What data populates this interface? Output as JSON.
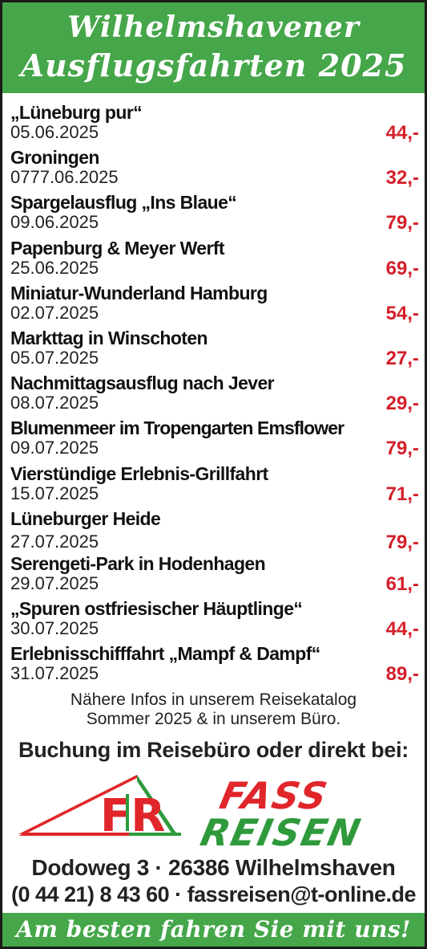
{
  "header": {
    "line1": "Wilhelmshavener",
    "line2": "Ausflugsfahrten 2025"
  },
  "trips": [
    {
      "name": "„Lüneburg pur“",
      "date": "05.06.2025",
      "price": "44,-"
    },
    {
      "name": "Groningen",
      "date": "0777.06.2025",
      "price": "32,-"
    },
    {
      "name": "Spargelausflug „Ins Blaue“",
      "date": "09.06.2025",
      "price": "79,-"
    },
    {
      "name": "Papenburg & Meyer Werft",
      "date": "25.06.2025",
      "price": "69,-"
    },
    {
      "name": "Miniatur-Wunderland Hamburg",
      "date": "02.07.2025",
      "price": "54,-"
    },
    {
      "name": "Markttag in Winschoten",
      "date": "05.07.2025",
      "price": "27,-"
    },
    {
      "name": "Nachmittagsausflug nach Jever",
      "date": "08.07.2025",
      "price": "29,-"
    },
    {
      "name": "Blumenmeer im Tropengarten Emsflower",
      "date": "09.07.2025",
      "price": "79,-"
    },
    {
      "name": "Vierstündige Erlebnis-Grillfahrt",
      "date": "15.07.2025",
      "price": "71,-"
    },
    {
      "name": "Lüneburger Heide",
      "date": "27.07.2025",
      "price": "79,-"
    },
    {
      "name": "Serengeti-Park in Hodenhagen",
      "date": "29.07.2025",
      "price": "61,-"
    },
    {
      "name": "„Spuren ostfriesischer Häuptlinge“",
      "date": "30.07.2025",
      "price": "44,-"
    },
    {
      "name": "Erlebnisschifffahrt  „Mampf & Dampf“",
      "date": "31.07.2025",
      "price": "89,-"
    }
  ],
  "info": {
    "line1": "Nähere Infos in unserem Reisekatalog",
    "line2": "Sommer 2025 & in unserem Büro."
  },
  "booking": "Buchung im Reisebüro oder direkt bei:",
  "logo": {
    "word1": "FASS",
    "word2": "REISEN",
    "monogram": "FR"
  },
  "address": "Dodoweg 3 · 26386 Wilhelmshaven",
  "contact": "(0 44 21) 8 43 60 · fassreisen@t-online.de",
  "footer": "Am besten fahren Sie mit uns!",
  "colors": {
    "green": "#45a64a",
    "red": "#d41f2a",
    "logo_red": "#e0262b",
    "logo_green": "#2f9a3c"
  }
}
